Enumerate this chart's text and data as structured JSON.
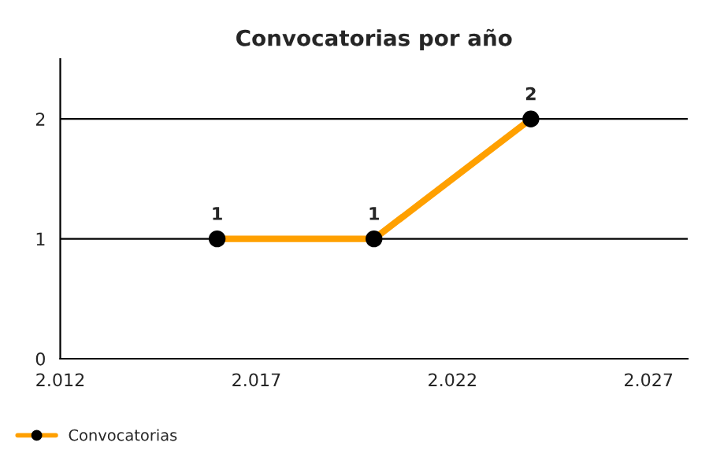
{
  "chart_data": {
    "type": "line",
    "title": "Convocatorias por año",
    "x": [
      2016,
      2020,
      2024
    ],
    "series": [
      {
        "name": "Convocatorias",
        "color": "#ffa000",
        "values": [
          1,
          1,
          2
        ]
      }
    ],
    "xlim": [
      2012,
      2028
    ],
    "xticks": [
      {
        "value": 2012,
        "label": "2.012"
      },
      {
        "value": 2017,
        "label": "2.017"
      },
      {
        "value": 2022,
        "label": "2.022"
      },
      {
        "value": 2027,
        "label": "2.027"
      }
    ],
    "ylim": [
      0,
      2.5
    ],
    "yticks": [
      0,
      1,
      2
    ],
    "grid": "y",
    "legend": "bottom left",
    "marker": "circle",
    "line_style": "solid",
    "data_labels": true
  }
}
